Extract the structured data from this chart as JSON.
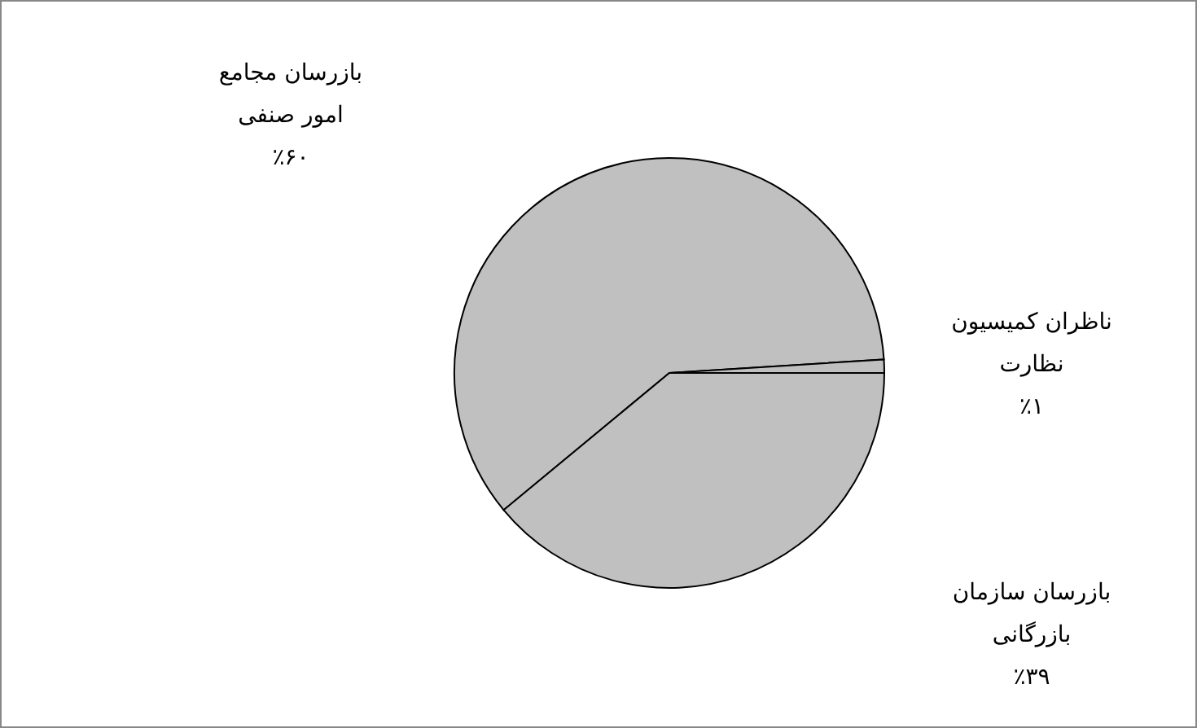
{
  "chart_data": {
    "type": "pie",
    "categories": [
      "ناظران کمیسیون نظارت",
      "بازرسان سازمان بازرگانی",
      "بازرسان مجامع امور صنفی"
    ],
    "values": [
      1,
      39,
      60
    ],
    "value_labels": [
      "٪۱",
      "٪۳۹",
      "٪۶۰"
    ],
    "colors": [
      "#c0c0c0",
      "#c0c0c0",
      "#c0c0c0"
    ]
  }
}
